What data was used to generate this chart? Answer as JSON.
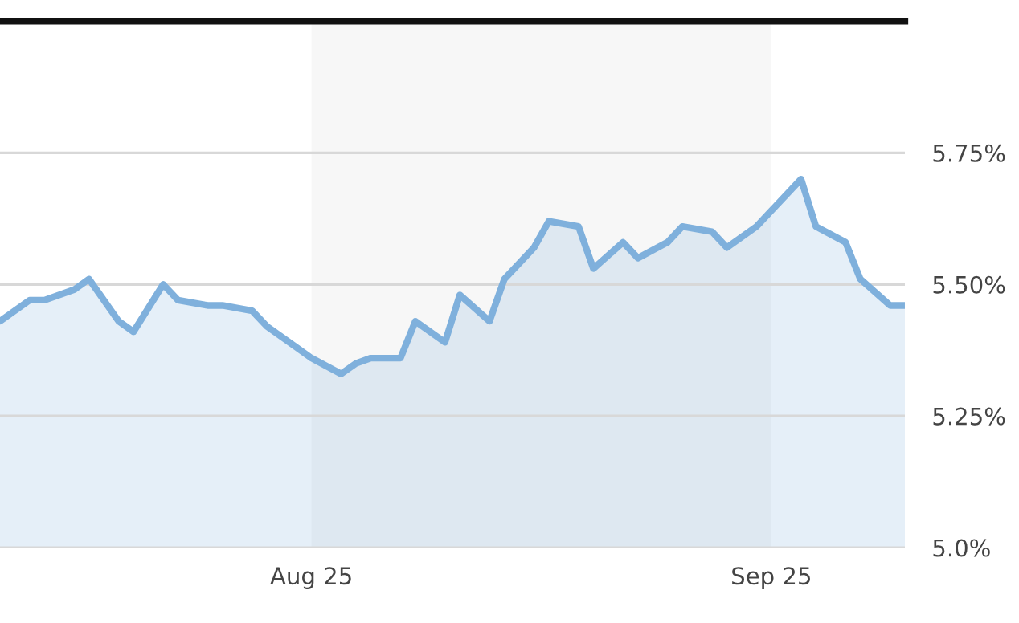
{
  "chart_data": {
    "type": "area",
    "x": [
      "2025-07-11",
      "2025-07-13",
      "2025-07-14",
      "2025-07-16",
      "2025-07-17",
      "2025-07-19",
      "2025-07-20",
      "2025-07-22",
      "2025-07-23",
      "2025-07-25",
      "2025-07-26",
      "2025-07-28",
      "2025-07-29",
      "2025-07-31",
      "2025-08-01",
      "2025-08-03",
      "2025-08-04",
      "2025-08-05",
      "2025-08-07",
      "2025-08-08",
      "2025-08-10",
      "2025-08-11",
      "2025-08-13",
      "2025-08-14",
      "2025-08-16",
      "2025-08-17",
      "2025-08-19",
      "2025-08-20",
      "2025-08-22",
      "2025-08-23",
      "2025-08-25",
      "2025-08-26",
      "2025-08-28",
      "2025-08-29",
      "2025-08-31",
      "2025-09-01",
      "2025-09-03",
      "2025-09-04",
      "2025-09-06",
      "2025-09-07",
      "2025-09-09",
      "2025-09-10"
    ],
    "series": [
      {
        "color": "#7fb0dc",
        "values": [
          5.43,
          5.47,
          5.47,
          5.49,
          5.51,
          5.43,
          5.41,
          5.5,
          5.47,
          5.46,
          5.46,
          5.45,
          5.42,
          5.38,
          5.36,
          5.33,
          5.35,
          5.36,
          5.36,
          5.43,
          5.39,
          5.48,
          5.43,
          5.51,
          5.57,
          5.62,
          5.61,
          5.53,
          5.58,
          5.55,
          5.58,
          5.61,
          5.6,
          5.57,
          5.61,
          5.64,
          5.7,
          5.61,
          5.58,
          5.51,
          5.46,
          5.46
        ]
      }
    ],
    "xlim": [
      "2025-07-11",
      "2025-09-10"
    ],
    "xticks": [
      {
        "value": "2025-08-01",
        "label": "Aug 25"
      },
      {
        "value": "2025-09-01",
        "label": "Sep 25"
      }
    ],
    "ylim": [
      5.0,
      6.0
    ],
    "yticks": [
      {
        "value": 5.0,
        "label": "5.0%"
      },
      {
        "value": 5.25,
        "label": "5.25%"
      },
      {
        "value": 5.5,
        "label": "5.50%"
      },
      {
        "value": 5.75,
        "label": "5.75%"
      }
    ],
    "bands": [
      {
        "axis": "x",
        "from": "2025-08-01",
        "to": "2025-09-01",
        "color": "#f7f7f7"
      }
    ],
    "grid": "y",
    "legend": false
  }
}
